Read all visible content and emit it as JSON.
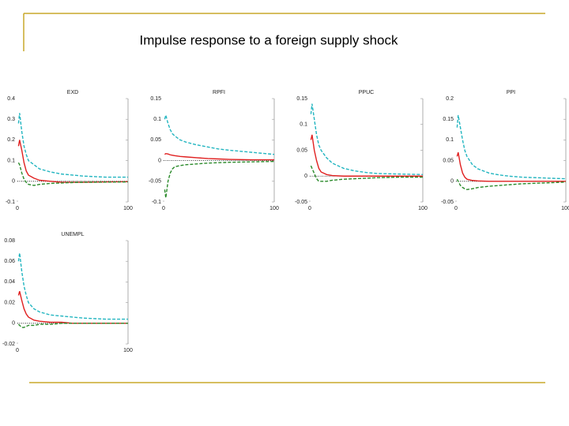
{
  "title": "Impulse response to a foreign supply shock",
  "chart_data": [
    {
      "type": "line",
      "title": "EXD",
      "xlim": [
        0,
        100
      ],
      "xticks": [
        0,
        100
      ],
      "ylim": [
        -0.1,
        0.4
      ],
      "yticks": [
        0.4,
        0.3,
        0.2,
        0.1,
        0,
        -0.1
      ],
      "x": [
        1,
        2,
        4,
        6,
        8,
        10,
        15,
        20,
        30,
        40,
        50,
        60,
        80,
        100
      ],
      "series": [
        {
          "color": "#22b5c0",
          "dashed": true,
          "values": [
            0.28,
            0.33,
            0.24,
            0.17,
            0.13,
            0.1,
            0.08,
            0.06,
            0.045,
            0.035,
            0.03,
            0.025,
            0.02,
            0.02
          ]
        },
        {
          "color": "#e02020",
          "dashed": false,
          "values": [
            0.17,
            0.2,
            0.15,
            0.09,
            0.05,
            0.03,
            0.015,
            0.005,
            0,
            -0.005,
            -0.005,
            -0.005,
            -0.003,
            -0.002
          ]
        },
        {
          "color": "#2a8a2a",
          "dashed": true,
          "values": [
            0.09,
            0.08,
            0.04,
            0.01,
            -0.005,
            -0.015,
            -0.02,
            -0.015,
            -0.01,
            -0.008,
            -0.006,
            -0.005,
            -0.004,
            -0.003
          ]
        }
      ]
    },
    {
      "type": "line",
      "title": "RPFI",
      "xlim": [
        0,
        100
      ],
      "xticks": [
        0,
        100
      ],
      "ylim": [
        -0.1,
        0.15
      ],
      "yticks": [
        0.15,
        0.1,
        0.05,
        0,
        -0.05,
        -0.1
      ],
      "x": [
        1,
        2,
        4,
        6,
        8,
        10,
        15,
        20,
        30,
        40,
        50,
        60,
        80,
        100
      ],
      "series": [
        {
          "color": "#22b5c0",
          "dashed": true,
          "values": [
            0.1,
            0.11,
            0.09,
            0.075,
            0.065,
            0.06,
            0.05,
            0.045,
            0.038,
            0.033,
            0.028,
            0.025,
            0.02,
            0.015
          ]
        },
        {
          "color": "#e02020",
          "dashed": false,
          "values": [
            0.015,
            0.017,
            0.016,
            0.014,
            0.013,
            0.012,
            0.01,
            0.009,
            0.007,
            0.005,
            0.004,
            0.003,
            0.002,
            0.002
          ]
        },
        {
          "color": "#2a8a2a",
          "dashed": true,
          "values": [
            -0.07,
            -0.09,
            -0.05,
            -0.03,
            -0.02,
            -0.015,
            -0.012,
            -0.01,
            -0.008,
            -0.006,
            -0.005,
            -0.004,
            -0.003,
            -0.002
          ]
        }
      ]
    },
    {
      "type": "line",
      "title": "PPUC",
      "xlim": [
        0,
        100
      ],
      "xticks": [
        0,
        100
      ],
      "ylim": [
        -0.05,
        0.15
      ],
      "yticks": [
        0.15,
        0.1,
        0.05,
        0,
        -0.05
      ],
      "x": [
        1,
        2,
        4,
        6,
        8,
        10,
        15,
        20,
        30,
        40,
        50,
        60,
        80,
        100
      ],
      "series": [
        {
          "color": "#22b5c0",
          "dashed": true,
          "values": [
            0.12,
            0.14,
            0.11,
            0.08,
            0.06,
            0.05,
            0.035,
            0.025,
            0.015,
            0.01,
            0.007,
            0.005,
            0.004,
            0.003
          ]
        },
        {
          "color": "#e02020",
          "dashed": false,
          "values": [
            0.07,
            0.08,
            0.05,
            0.03,
            0.015,
            0.008,
            0.003,
            0.001,
            0,
            0,
            0,
            0,
            0,
            0
          ]
        },
        {
          "color": "#2a8a2a",
          "dashed": true,
          "values": [
            0.02,
            0.015,
            0.005,
            -0.005,
            -0.01,
            -0.01,
            -0.01,
            -0.008,
            -0.006,
            -0.005,
            -0.004,
            -0.003,
            -0.002,
            -0.002
          ]
        }
      ]
    },
    {
      "type": "line",
      "title": "PPI",
      "xlim": [
        0,
        100
      ],
      "xticks": [
        0,
        100
      ],
      "ylim": [
        -0.05,
        0.2
      ],
      "yticks": [
        0.2,
        0.15,
        0.1,
        0.05,
        0,
        -0.05
      ],
      "x": [
        1,
        2,
        4,
        6,
        8,
        10,
        15,
        20,
        30,
        40,
        50,
        60,
        80,
        100
      ],
      "series": [
        {
          "color": "#22b5c0",
          "dashed": true,
          "values": [
            0.13,
            0.16,
            0.13,
            0.1,
            0.075,
            0.06,
            0.04,
            0.03,
            0.02,
            0.015,
            0.012,
            0.01,
            0.008,
            0.006
          ]
        },
        {
          "color": "#e02020",
          "dashed": false,
          "values": [
            0.06,
            0.07,
            0.04,
            0.02,
            0.01,
            0.005,
            0.002,
            0.001,
            0,
            0,
            0,
            0,
            0,
            0
          ]
        },
        {
          "color": "#2a8a2a",
          "dashed": true,
          "values": [
            0.005,
            0,
            -0.01,
            -0.015,
            -0.018,
            -0.02,
            -0.018,
            -0.015,
            -0.012,
            -0.01,
            -0.008,
            -0.006,
            -0.004,
            -0.002
          ]
        }
      ]
    },
    {
      "type": "line",
      "title": "UNEMPL",
      "xlim": [
        0,
        100
      ],
      "xticks": [
        0,
        100
      ],
      "ylim": [
        -0.02,
        0.08
      ],
      "yticks": [
        0.08,
        0.06,
        0.04,
        0.02,
        0,
        -0.02
      ],
      "x": [
        1,
        2,
        4,
        6,
        8,
        10,
        15,
        20,
        30,
        40,
        50,
        60,
        80,
        100
      ],
      "series": [
        {
          "color": "#22b5c0",
          "dashed": true,
          "values": [
            0.06,
            0.068,
            0.05,
            0.036,
            0.027,
            0.02,
            0.014,
            0.011,
            0.008,
            0.007,
            0.006,
            0.005,
            0.004,
            0.004
          ]
        },
        {
          "color": "#e02020",
          "dashed": false,
          "values": [
            0.027,
            0.031,
            0.022,
            0.014,
            0.009,
            0.006,
            0.003,
            0.002,
            0.001,
            0.001,
            0,
            0,
            0,
            0
          ]
        },
        {
          "color": "#2a8a2a",
          "dashed": true,
          "values": [
            -0.001,
            -0.002,
            -0.004,
            -0.004,
            -0.003,
            -0.002,
            -0.002,
            -0.001,
            -0.001,
            0,
            0,
            0,
            0,
            0
          ]
        }
      ]
    }
  ]
}
